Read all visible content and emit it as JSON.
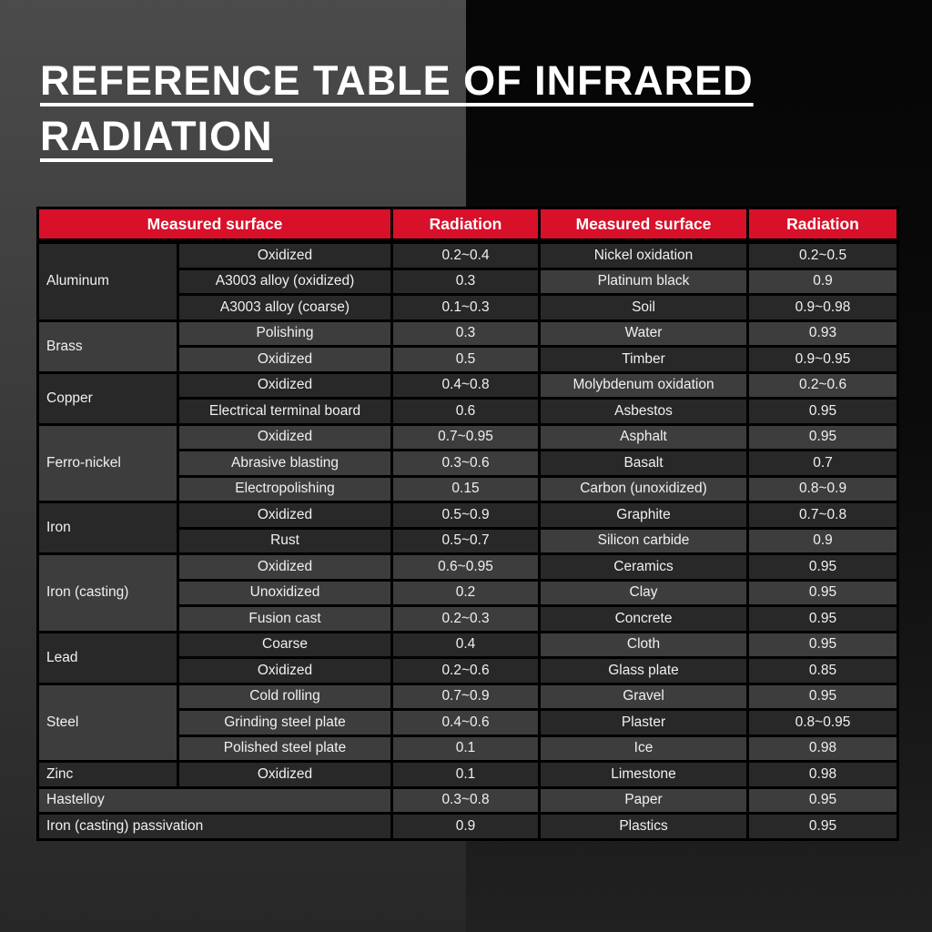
{
  "title": "REFERENCE TABLE OF INFRARED RADIATION",
  "colors": {
    "header_red": "#d8102a",
    "row_dark": "#282828",
    "row_light": "#3d3d3d",
    "border": "#000000",
    "text": "#f0f0f0"
  },
  "table": {
    "headers": [
      "Measured surface",
      "Radiation",
      "Measured surface",
      "Radiation"
    ],
    "left_groups": [
      {
        "material": "Aluminum",
        "rows": [
          {
            "surface": "Oxidized",
            "radiation": "0.2~0.4"
          },
          {
            "surface": "A3003 alloy (oxidized)",
            "radiation": "0.3"
          },
          {
            "surface": "A3003 alloy (coarse)",
            "radiation": "0.1~0.3"
          }
        ]
      },
      {
        "material": "Brass",
        "rows": [
          {
            "surface": "Polishing",
            "radiation": "0.3"
          },
          {
            "surface": "Oxidized",
            "radiation": "0.5"
          }
        ]
      },
      {
        "material": "Copper",
        "rows": [
          {
            "surface": "Oxidized",
            "radiation": "0.4~0.8"
          },
          {
            "surface": "Electrical terminal board",
            "radiation": "0.6"
          }
        ]
      },
      {
        "material": "Ferro-nickel",
        "rows": [
          {
            "surface": "Oxidized",
            "radiation": "0.7~0.95"
          },
          {
            "surface": "Abrasive blasting",
            "radiation": "0.3~0.6"
          },
          {
            "surface": "Electropolishing",
            "radiation": "0.15"
          }
        ]
      },
      {
        "material": "Iron",
        "rows": [
          {
            "surface": "Oxidized",
            "radiation": "0.5~0.9"
          },
          {
            "surface": "Rust",
            "radiation": "0.5~0.7"
          }
        ]
      },
      {
        "material": "Iron (casting)",
        "rows": [
          {
            "surface": "Oxidized",
            "radiation": "0.6~0.95"
          },
          {
            "surface": "Unoxidized",
            "radiation": "0.2"
          },
          {
            "surface": "Fusion cast",
            "radiation": "0.2~0.3"
          }
        ]
      },
      {
        "material": "Lead",
        "rows": [
          {
            "surface": "Coarse",
            "radiation": "0.4"
          },
          {
            "surface": "Oxidized",
            "radiation": "0.2~0.6"
          }
        ]
      },
      {
        "material": "Steel",
        "rows": [
          {
            "surface": "Cold rolling",
            "radiation": "0.7~0.9"
          },
          {
            "surface": "Grinding steel plate",
            "radiation": "0.4~0.6"
          },
          {
            "surface": "Polished steel plate",
            "radiation": "0.1"
          }
        ]
      },
      {
        "material": "Zinc",
        "rows": [
          {
            "surface": "Oxidized",
            "radiation": "0.1"
          }
        ]
      },
      {
        "material": "Hastelloy",
        "full_row": true,
        "radiation": "0.3~0.8"
      },
      {
        "material": "Iron (casting) passivation",
        "full_row": true,
        "radiation": "0.9"
      }
    ],
    "right_rows": [
      {
        "material": "Nickel oxidation",
        "radiation": "0.2~0.5"
      },
      {
        "material": "Platinum black",
        "radiation": "0.9"
      },
      {
        "material": "Soil",
        "radiation": "0.9~0.98"
      },
      {
        "material": "Water",
        "radiation": "0.93"
      },
      {
        "material": "Timber",
        "radiation": "0.9~0.95"
      },
      {
        "material": "Molybdenum oxidation",
        "radiation": "0.2~0.6"
      },
      {
        "material": "Asbestos",
        "radiation": "0.95"
      },
      {
        "material": "Asphalt",
        "radiation": "0.95"
      },
      {
        "material": "Basalt",
        "radiation": "0.7"
      },
      {
        "material": "Carbon (unoxidized)",
        "radiation": "0.8~0.9"
      },
      {
        "material": "Graphite",
        "radiation": "0.7~0.8"
      },
      {
        "material": "Silicon carbide",
        "radiation": "0.9"
      },
      {
        "material": "Ceramics",
        "radiation": "0.95"
      },
      {
        "material": "Clay",
        "radiation": "0.95"
      },
      {
        "material": "Concrete",
        "radiation": "0.95"
      },
      {
        "material": "Cloth",
        "radiation": "0.95"
      },
      {
        "material": "Glass plate",
        "radiation": "0.85"
      },
      {
        "material": "Gravel",
        "radiation": "0.95"
      },
      {
        "material": "Plaster",
        "radiation": "0.8~0.95"
      },
      {
        "material": "Ice",
        "radiation": "0.98"
      },
      {
        "material": "Limestone",
        "radiation": "0.98"
      },
      {
        "material": "Paper",
        "radiation": "0.95"
      },
      {
        "material": "Plastics",
        "radiation": "0.95"
      }
    ]
  }
}
